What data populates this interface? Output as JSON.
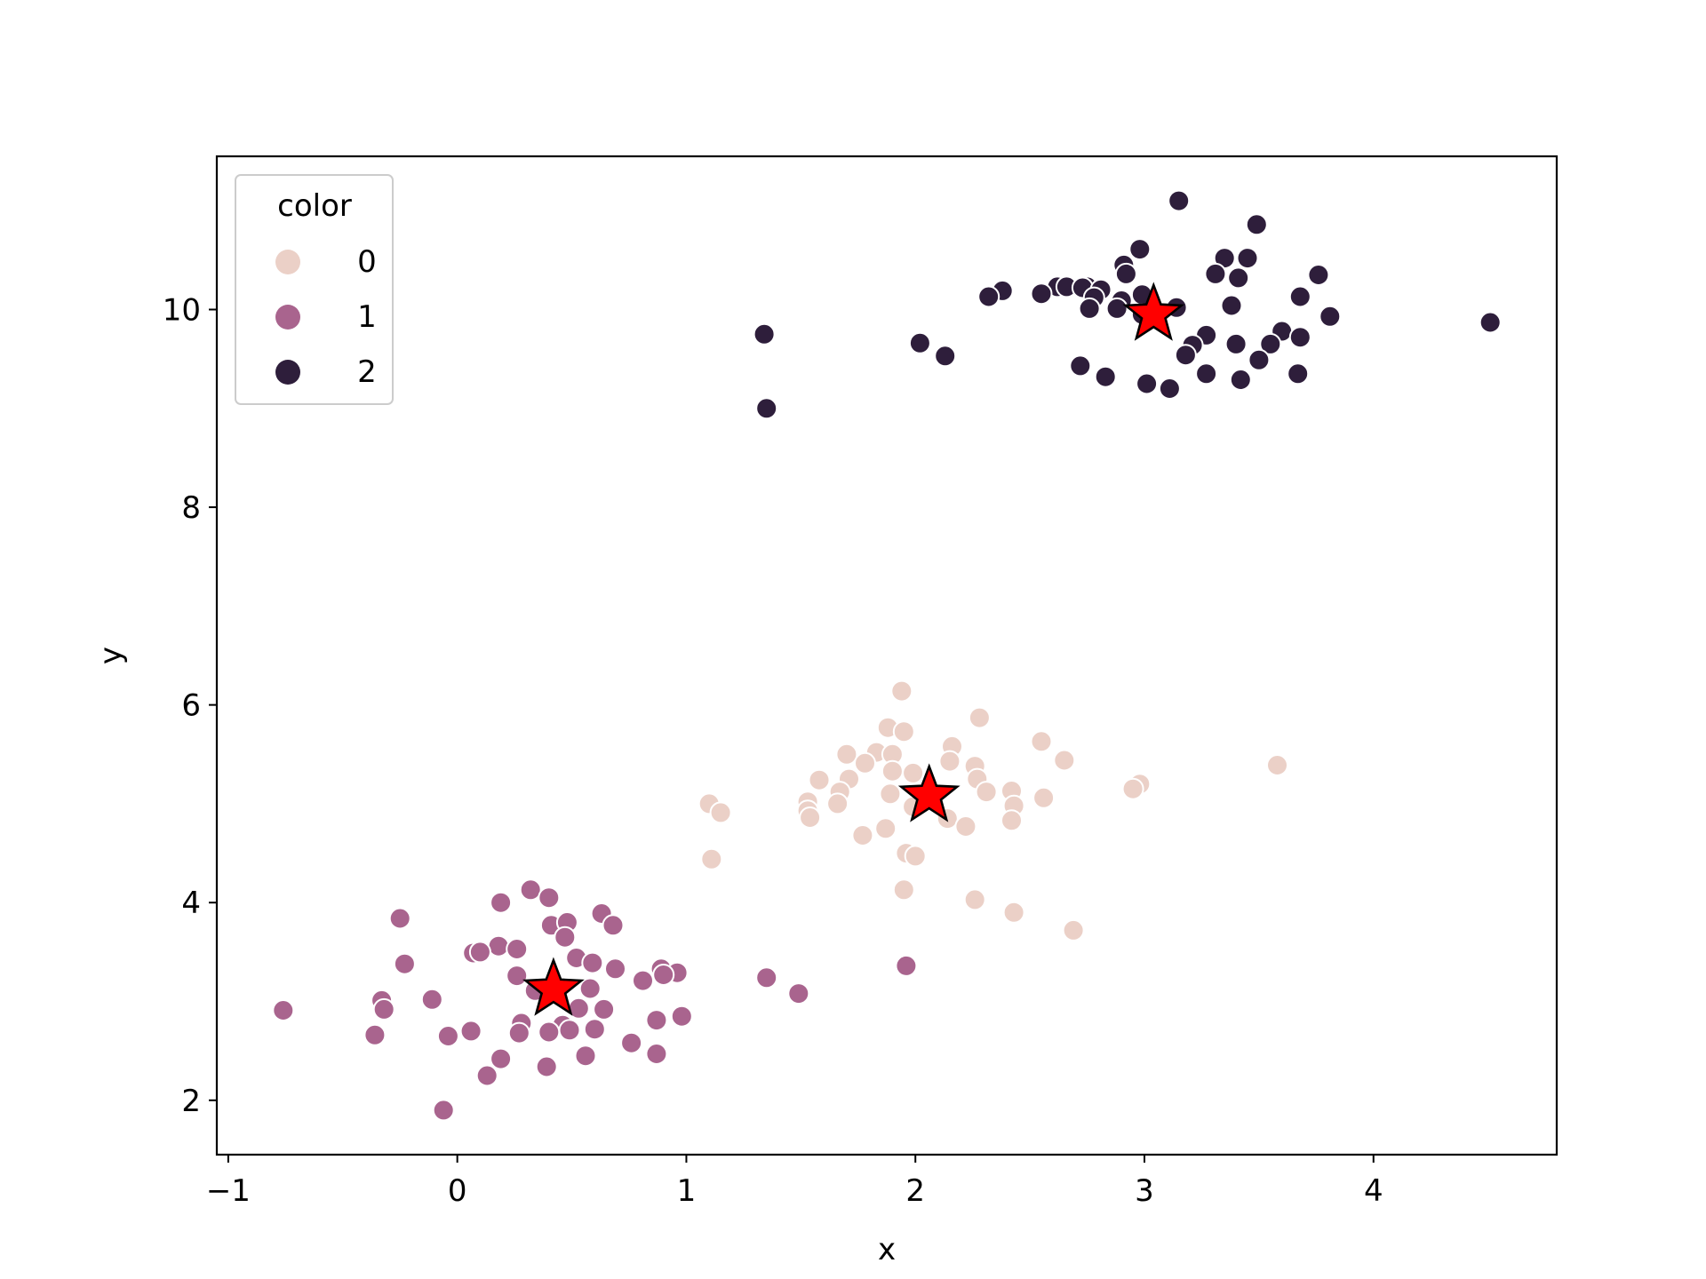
{
  "chart_data": {
    "type": "scatter",
    "title": "",
    "xlabel": "x",
    "ylabel": "y",
    "xlim": [
      -1.05,
      4.8
    ],
    "ylim": [
      1.45,
      11.55
    ],
    "xticks": [
      -1,
      0,
      1,
      2,
      3,
      4
    ],
    "xtick_labels": [
      "−1",
      "0",
      "1",
      "2",
      "3",
      "4"
    ],
    "yticks": [
      2,
      4,
      6,
      8,
      10
    ],
    "ytick_labels": [
      "2",
      "4",
      "6",
      "8",
      "10"
    ],
    "grid": false,
    "legend": {
      "title": "color",
      "placement": "top-left",
      "entries": [
        {
          "label": "0",
          "color": "#ebd0c7"
        },
        {
          "label": "1",
          "color": "#a9648e"
        },
        {
          "label": "2",
          "color": "#2e1e3b"
        }
      ]
    },
    "series": [
      {
        "name": "0",
        "color": "#ebd0c7",
        "points": [
          [
            1.94,
            6.14
          ],
          [
            2.28,
            5.87
          ],
          [
            1.88,
            5.77
          ],
          [
            1.95,
            5.73
          ],
          [
            2.55,
            5.63
          ],
          [
            2.16,
            5.58
          ],
          [
            1.7,
            5.5
          ],
          [
            1.83,
            5.52
          ],
          [
            1.9,
            5.5
          ],
          [
            2.65,
            5.44
          ],
          [
            2.15,
            5.43
          ],
          [
            3.58,
            5.39
          ],
          [
            1.78,
            5.41
          ],
          [
            2.26,
            5.38
          ],
          [
            1.9,
            5.33
          ],
          [
            1.99,
            5.31
          ],
          [
            1.58,
            5.24
          ],
          [
            1.71,
            5.25
          ],
          [
            2.27,
            5.25
          ],
          [
            2.98,
            5.2
          ],
          [
            2.95,
            5.15
          ],
          [
            2.42,
            5.13
          ],
          [
            2.31,
            5.12
          ],
          [
            1.89,
            5.1
          ],
          [
            1.67,
            5.12
          ],
          [
            2.56,
            5.06
          ],
          [
            1.53,
            5.02
          ],
          [
            1.1,
            5.0
          ],
          [
            2.43,
            4.98
          ],
          [
            1.99,
            4.97
          ],
          [
            1.66,
            5.0
          ],
          [
            1.53,
            4.93
          ],
          [
            1.15,
            4.91
          ],
          [
            1.54,
            4.86
          ],
          [
            2.14,
            4.85
          ],
          [
            2.42,
            4.83
          ],
          [
            1.87,
            4.75
          ],
          [
            2.22,
            4.77
          ],
          [
            1.77,
            4.68
          ],
          [
            1.96,
            4.5
          ],
          [
            2.0,
            4.47
          ],
          [
            1.11,
            4.44
          ],
          [
            1.95,
            4.13
          ],
          [
            2.26,
            4.03
          ],
          [
            2.43,
            3.9
          ],
          [
            2.69,
            3.72
          ]
        ]
      },
      {
        "name": "1",
        "color": "#a9648e",
        "points": [
          [
            0.32,
            4.13
          ],
          [
            0.4,
            4.05
          ],
          [
            0.19,
            4.0
          ],
          [
            0.63,
            3.89
          ],
          [
            -0.25,
            3.84
          ],
          [
            0.41,
            3.77
          ],
          [
            0.48,
            3.8
          ],
          [
            0.68,
            3.77
          ],
          [
            0.47,
            3.65
          ],
          [
            0.18,
            3.56
          ],
          [
            0.26,
            3.53
          ],
          [
            0.07,
            3.49
          ],
          [
            0.1,
            3.5
          ],
          [
            0.52,
            3.44
          ],
          [
            0.59,
            3.39
          ],
          [
            -0.23,
            3.38
          ],
          [
            0.69,
            3.33
          ],
          [
            0.89,
            3.33
          ],
          [
            0.96,
            3.29
          ],
          [
            0.9,
            3.27
          ],
          [
            0.26,
            3.26
          ],
          [
            1.35,
            3.24
          ],
          [
            0.81,
            3.21
          ],
          [
            0.58,
            3.13
          ],
          [
            0.34,
            3.11
          ],
          [
            1.49,
            3.08
          ],
          [
            -0.33,
            3.01
          ],
          [
            -0.11,
            3.02
          ],
          [
            0.53,
            2.93
          ],
          [
            0.64,
            2.92
          ],
          [
            -0.32,
            2.92
          ],
          [
            -0.76,
            2.91
          ],
          [
            0.98,
            2.85
          ],
          [
            0.87,
            2.81
          ],
          [
            0.28,
            2.78
          ],
          [
            0.46,
            2.76
          ],
          [
            0.49,
            2.71
          ],
          [
            0.6,
            2.72
          ],
          [
            0.06,
            2.7
          ],
          [
            0.27,
            2.68
          ],
          [
            0.4,
            2.69
          ],
          [
            -0.36,
            2.66
          ],
          [
            -0.04,
            2.65
          ],
          [
            0.76,
            2.58
          ],
          [
            0.87,
            2.47
          ],
          [
            0.56,
            2.45
          ],
          [
            0.19,
            2.42
          ],
          [
            0.39,
            2.34
          ],
          [
            0.13,
            2.25
          ],
          [
            -0.06,
            1.9
          ],
          [
            1.96,
            3.36
          ]
        ]
      },
      {
        "name": "2",
        "color": "#2e1e3b",
        "points": [
          [
            3.15,
            11.1
          ],
          [
            3.49,
            10.86
          ],
          [
            2.98,
            10.61
          ],
          [
            3.35,
            10.52
          ],
          [
            3.45,
            10.52
          ],
          [
            2.91,
            10.45
          ],
          [
            2.92,
            10.36
          ],
          [
            3.31,
            10.36
          ],
          [
            3.76,
            10.35
          ],
          [
            3.41,
            10.32
          ],
          [
            2.62,
            10.23
          ],
          [
            2.66,
            10.23
          ],
          [
            2.75,
            10.23
          ],
          [
            2.73,
            10.22
          ],
          [
            2.81,
            10.2
          ],
          [
            2.38,
            10.19
          ],
          [
            2.55,
            10.16
          ],
          [
            2.99,
            10.15
          ],
          [
            2.32,
            10.13
          ],
          [
            2.78,
            10.12
          ],
          [
            3.68,
            10.13
          ],
          [
            2.9,
            10.09
          ],
          [
            3.38,
            10.04
          ],
          [
            2.76,
            10.01
          ],
          [
            3.14,
            10.02
          ],
          [
            2.88,
            10.01
          ],
          [
            2.99,
            9.95
          ],
          [
            4.51,
            9.87
          ],
          [
            3.81,
            9.93
          ],
          [
            3.6,
            9.78
          ],
          [
            3.68,
            9.72
          ],
          [
            3.27,
            9.74
          ],
          [
            3.55,
            9.65
          ],
          [
            3.21,
            9.64
          ],
          [
            3.4,
            9.65
          ],
          [
            2.02,
            9.66
          ],
          [
            3.18,
            9.54
          ],
          [
            2.13,
            9.53
          ],
          [
            3.5,
            9.49
          ],
          [
            2.72,
            9.43
          ],
          [
            3.27,
            9.35
          ],
          [
            3.67,
            9.35
          ],
          [
            2.83,
            9.32
          ],
          [
            3.42,
            9.29
          ],
          [
            3.01,
            9.25
          ],
          [
            3.11,
            9.2
          ],
          [
            1.34,
            9.75
          ],
          [
            1.35,
            9.0
          ]
        ]
      }
    ],
    "centroids": {
      "marker": "star",
      "color": "#ff0000",
      "points": [
        [
          2.06,
          5.08
        ],
        [
          0.42,
          3.12
        ],
        [
          3.04,
          9.95
        ]
      ]
    }
  }
}
